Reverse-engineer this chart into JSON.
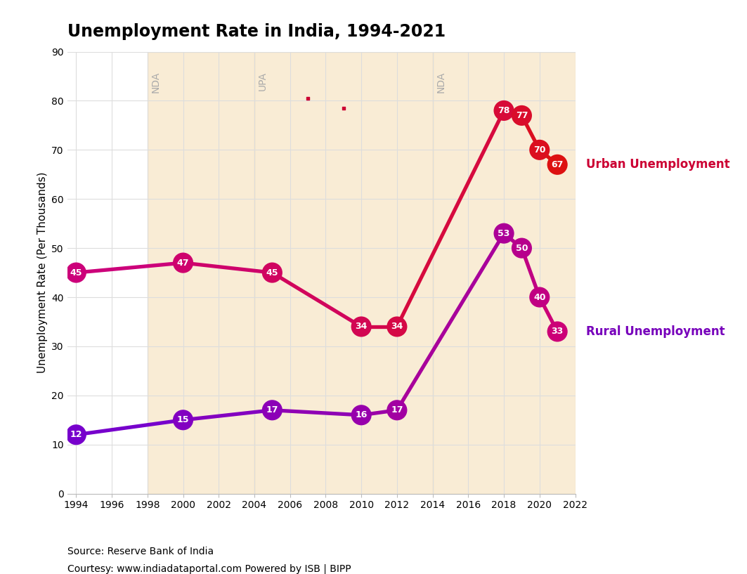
{
  "title": "Unemployment Rate in India, 1994-2021",
  "ylabel": "Unemployment Rate (Per Thousands)",
  "source_line1": "Source: Reserve Bank of India",
  "source_line2": "Courtesy: www.indiadataportal.com Powered by ISB | BIPP",
  "urban_years": [
    1994,
    2000,
    2005,
    2010,
    2012,
    2018,
    2019,
    2020,
    2021
  ],
  "urban_values": [
    45,
    47,
    45,
    34,
    34,
    78,
    77,
    70,
    67
  ],
  "rural_years": [
    1994,
    2000,
    2005,
    2010,
    2012,
    2018,
    2019,
    2020,
    2021
  ],
  "rural_values": [
    12,
    15,
    17,
    16,
    17,
    53,
    50,
    40,
    33
  ],
  "urban_scatter_years": [
    2007,
    2009
  ],
  "urban_scatter_values": [
    80.5,
    78.5
  ],
  "urban_color_start": "#cc007a",
  "urban_color_end": "#dd1111",
  "rural_color_start": "#7700cc",
  "rural_color_end": "#cc0077",
  "nda1_start": 1998,
  "nda1_end": 2004,
  "upa_start": 2004,
  "upa_end": 2014,
  "nda2_start": 2014,
  "nda2_end": 2022,
  "band_color": "#f5deb3",
  "band_alpha": 0.55,
  "ylim": [
    0,
    90
  ],
  "xlim": [
    1993.5,
    2022
  ],
  "xticks": [
    1994,
    1996,
    1998,
    2000,
    2002,
    2004,
    2006,
    2008,
    2010,
    2012,
    2014,
    2016,
    2018,
    2020,
    2022
  ],
  "yticks": [
    0,
    10,
    20,
    30,
    40,
    50,
    60,
    70,
    80,
    90
  ],
  "background_color": "#ffffff",
  "grid_color": "#dddddd",
  "urban_label": "Urban Unemployment",
  "rural_label": "Rural Unemployment",
  "marker_size_pts": 440,
  "linewidth": 3.8,
  "label_nda": "NDA",
  "label_upa": "UPA",
  "era_label_color": "#aaaaaa",
  "era_label_fontsize": 10,
  "urban_label_color": "#cc0033",
  "rural_label_color": "#7700bb"
}
